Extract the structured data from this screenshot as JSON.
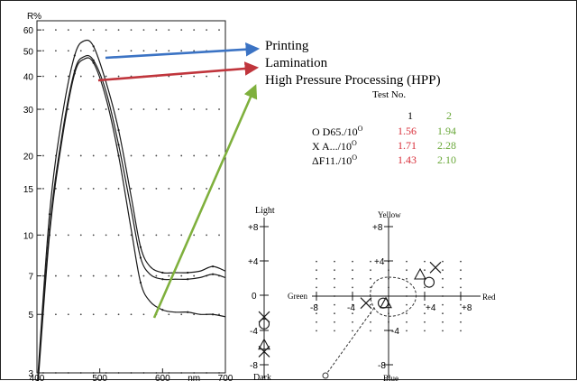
{
  "colors": {
    "printing": "#3b73c4",
    "lamination": "#c0353c",
    "hpp": "#7fb03d",
    "test1": "#d9303b",
    "test2": "#6aa83a",
    "ink": "#1a1a1a"
  },
  "chart_data": [
    {
      "type": "line",
      "ylabel": "R%",
      "xunit": "nm",
      "ylim": [
        3,
        65
      ],
      "xlim": [
        400,
        700
      ],
      "yscale": "log",
      "grid": "dotted",
      "x_ticks": [
        "400",
        "500",
        "600",
        "nm",
        "700"
      ],
      "y_ticks": [
        3,
        5,
        7,
        10,
        15,
        20,
        30,
        40,
        50,
        60
      ],
      "series": [
        {
          "name": "Printing",
          "points": [
            [
              400,
              2.6
            ],
            [
              420,
              12
            ],
            [
              440,
              28
            ],
            [
              460,
              48
            ],
            [
              475,
              54.5
            ],
            [
              490,
              52
            ],
            [
              510,
              38
            ],
            [
              530,
              25
            ],
            [
              550,
              14
            ],
            [
              565,
              9
            ],
            [
              580,
              7.6
            ],
            [
              600,
              7.2
            ],
            [
              620,
              7.2
            ],
            [
              640,
              7.2
            ],
            [
              660,
              7.3
            ],
            [
              680,
              7.6
            ],
            [
              700,
              7.3
            ]
          ]
        },
        {
          "name": "Lamination",
          "points": [
            [
              400,
              2.5
            ],
            [
              420,
              10.5
            ],
            [
              440,
              24
            ],
            [
              460,
              42
            ],
            [
              475,
              47.5
            ],
            [
              490,
              46
            ],
            [
              510,
              35
            ],
            [
              530,
              22
            ],
            [
              550,
              12.5
            ],
            [
              565,
              8.2
            ],
            [
              580,
              7.1
            ],
            [
              600,
              6.8
            ],
            [
              620,
              6.8
            ],
            [
              640,
              6.8
            ],
            [
              660,
              6.9
            ],
            [
              680,
              7.1
            ],
            [
              700,
              6.9
            ]
          ]
        },
        {
          "name": "High Pressure Processing (HPP)",
          "points": [
            [
              400,
              2.4
            ],
            [
              420,
              10
            ],
            [
              440,
              23
            ],
            [
              460,
              41
            ],
            [
              475,
              46.5
            ],
            [
              490,
              45
            ],
            [
              510,
              33
            ],
            [
              530,
              20
            ],
            [
              550,
              10.5
            ],
            [
              565,
              6.6
            ],
            [
              580,
              5.6
            ],
            [
              600,
              5.2
            ],
            [
              620,
              5.1
            ],
            [
              640,
              5.1
            ],
            [
              660,
              5.0
            ],
            [
              680,
              5.0
            ],
            [
              700,
              4.9
            ]
          ]
        }
      ]
    },
    {
      "type": "table",
      "title": "Test No.",
      "columns": [
        "1",
        "2"
      ],
      "rows": [
        {
          "label": "O D65./10",
          "sup": "O",
          "values": [
            "1.56",
            "1.94"
          ]
        },
        {
          "label": "X A.../10",
          "sup": "O",
          "values": [
            "1.71",
            "2.28"
          ]
        },
        {
          "label": "ΔF11./10",
          "sup": "O",
          "values": [
            "1.43",
            "2.10"
          ]
        }
      ]
    },
    {
      "type": "scatter",
      "labels": {
        "top": "Yellow",
        "bottom": "Blue",
        "left": "Green",
        "right": "Red",
        "top_left": "Light",
        "bottom_left": "Dark"
      },
      "x_ticks": [
        "-8",
        "-4",
        "+4",
        "+8"
      ],
      "y_ticks": [
        "+8",
        "+4",
        "0",
        "-4",
        "-8"
      ],
      "xlim": [
        -10,
        10
      ],
      "ylim": [
        -10,
        10
      ],
      "markers": [
        {
          "symbol": "X",
          "x": 5.2,
          "y": 3.3
        },
        {
          "symbol": "triangle",
          "x": 3.5,
          "y": 2.5
        },
        {
          "symbol": "circle",
          "x": 4.5,
          "y": 1.6
        },
        {
          "symbol": "X",
          "x": -2.5,
          "y": -0.8
        },
        {
          "symbol": "triangle",
          "x": -0.3,
          "y": -0.8
        },
        {
          "symbol": "circle",
          "x": -0.6,
          "y": -0.8
        }
      ],
      "lightness_markers": [
        {
          "symbol": "X",
          "y": -2.4
        },
        {
          "symbol": "circle",
          "y": -3.2
        },
        {
          "symbol": "triangle",
          "y": -5.6
        },
        {
          "symbol": "X",
          "y": -6.4
        }
      ]
    }
  ],
  "legend": {
    "printing": "Printing",
    "lamination": "Lamination",
    "hpp": "High Pressure Processing (HPP)"
  },
  "table": {
    "title": "Test No.",
    "col1": "1",
    "col2": "2",
    "r1_label": "O D65./10",
    "r2_label": "X A.../10",
    "r3_label": "ΔF11./10",
    "sup": "O",
    "r1_v1": "1.56",
    "r1_v2": "1.94",
    "r2_v1": "1.71",
    "r2_v2": "2.28",
    "r3_v1": "1.43",
    "r3_v2": "2.10"
  },
  "axes": {
    "y_title": "R%",
    "y": [
      "60",
      "50",
      "40",
      "30",
      "20",
      "15",
      "10",
      "7",
      "5",
      "3"
    ],
    "x": [
      "400",
      "500",
      "600",
      "nm",
      "700"
    ]
  },
  "colorspace": {
    "top": "Yellow",
    "bottom": "Blue",
    "left": "Green",
    "right": "Red",
    "light": "Light",
    "dark": "Dark",
    "y_p8": "+8",
    "y_p4": "+4",
    "y_0": "0",
    "y_m4": "-4",
    "y_m8": "-8",
    "x_m8": "-8",
    "x_m4": "-4",
    "x_p4": "+4",
    "x_p8": "+8",
    "ax_y_p4": "+4",
    "ax_y_p8": "+8",
    "ax_y_m4": "-4",
    "ax_y_m8": "-8"
  }
}
